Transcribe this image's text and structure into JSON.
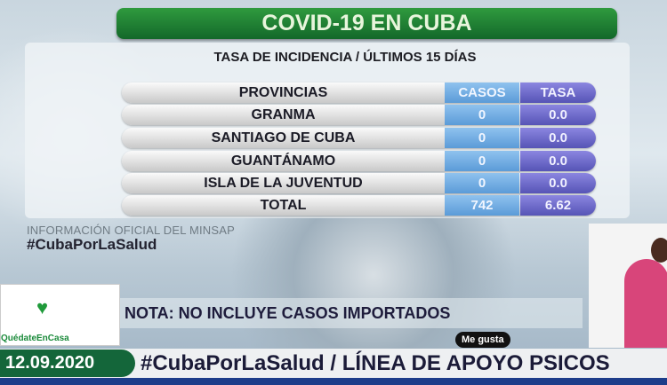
{
  "title": "COVID-19 EN CUBA",
  "subtitle": "TASA DE INCIDENCIA / ÚLTIMOS 15 DÍAS",
  "table": {
    "headers": [
      "PROVINCIAS",
      "CASOS",
      "TASA"
    ],
    "rows": [
      {
        "provincia": "GRANMA",
        "casos": "0",
        "tasa": "0.0"
      },
      {
        "provincia": "SANTIAGO DE CUBA",
        "casos": "0",
        "tasa": "0.0"
      },
      {
        "provincia": "GUANTÁNAMO",
        "casos": "0",
        "tasa": "0.0"
      },
      {
        "provincia": "ISLA DE LA JUVENTUD",
        "casos": "0",
        "tasa": "0.0"
      },
      {
        "provincia": "TOTAL",
        "casos": "742",
        "tasa": "6.62"
      }
    ]
  },
  "source": "INFORMACIÓN OFICIAL DEL MINSAP",
  "hashtag": "#CubaPorLaSalud",
  "logo_tag": "QuédateEnCasa",
  "note": "NOTA: NO INCLUYE CASOS IMPORTADOS",
  "date": "12.09.2020",
  "ticker": "#CubaPorLaSalud / LÍNEA DE APOYO PSICOS",
  "like_tooltip": "Me gusta",
  "colors": {
    "title_green": "#13682a",
    "casos_blue": "#5b9bd8",
    "tasa_purple": "#5654b6"
  }
}
